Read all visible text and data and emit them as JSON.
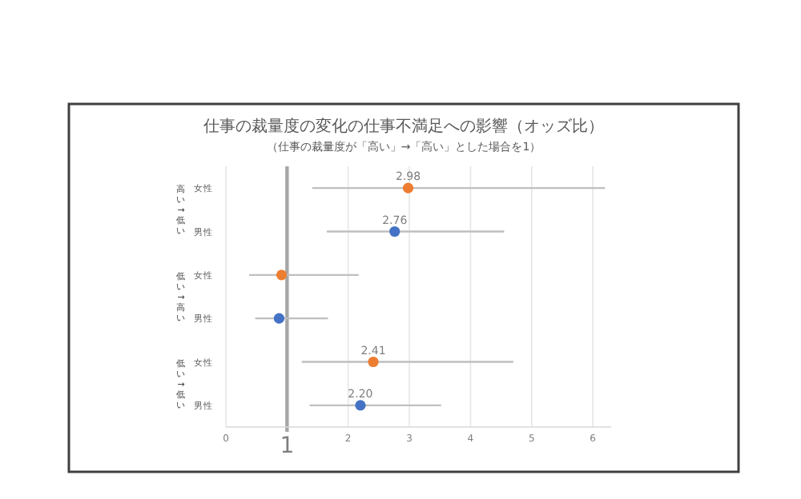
{
  "chart_data": {
    "type": "scatter",
    "orientation": "horizontal",
    "title": "仕事の裁量度の変化の仕事不満足への影響（オッズ比）",
    "subtitle": "（仕事の裁量度が「高い」→「高い」とした場合を1）",
    "categories": [
      "女性",
      "男性",
      "女性",
      "男性",
      "女性",
      "男性"
    ],
    "annotations": [
      "高い→低い",
      "低い→高い",
      "低い→低い"
    ],
    "series": [
      {
        "color": "#ed7d31",
        "values": [
          2.98,
          null,
          0.91,
          null,
          2.41,
          null
        ],
        "errors": [
          [
            1.41,
            6.2
          ],
          null,
          [
            0.38,
            2.17
          ],
          null,
          [
            1.24,
            4.7
          ],
          null
        ],
        "value_labels": [
          "2.98",
          null,
          null,
          null,
          "2.41",
          null
        ]
      },
      {
        "color": "#4472c4",
        "values": [
          null,
          2.76,
          null,
          0.87,
          null,
          2.2
        ],
        "errors": [
          null,
          [
            1.65,
            4.55
          ],
          null,
          [
            0.48,
            1.67
          ],
          null,
          [
            1.37,
            3.52
          ]
        ],
        "value_labels": [
          null,
          "2.76",
          null,
          null,
          null,
          "2.20"
        ]
      }
    ],
    "xlim": [
      0,
      6.3
    ],
    "xticks": [
      0,
      2,
      3,
      4,
      5,
      6
    ],
    "grid": "x",
    "marker": "circle",
    "ref_lines": [
      {
        "axis": "x",
        "value": 1,
        "label": "1",
        "color": "#a6a6a6"
      }
    ]
  }
}
